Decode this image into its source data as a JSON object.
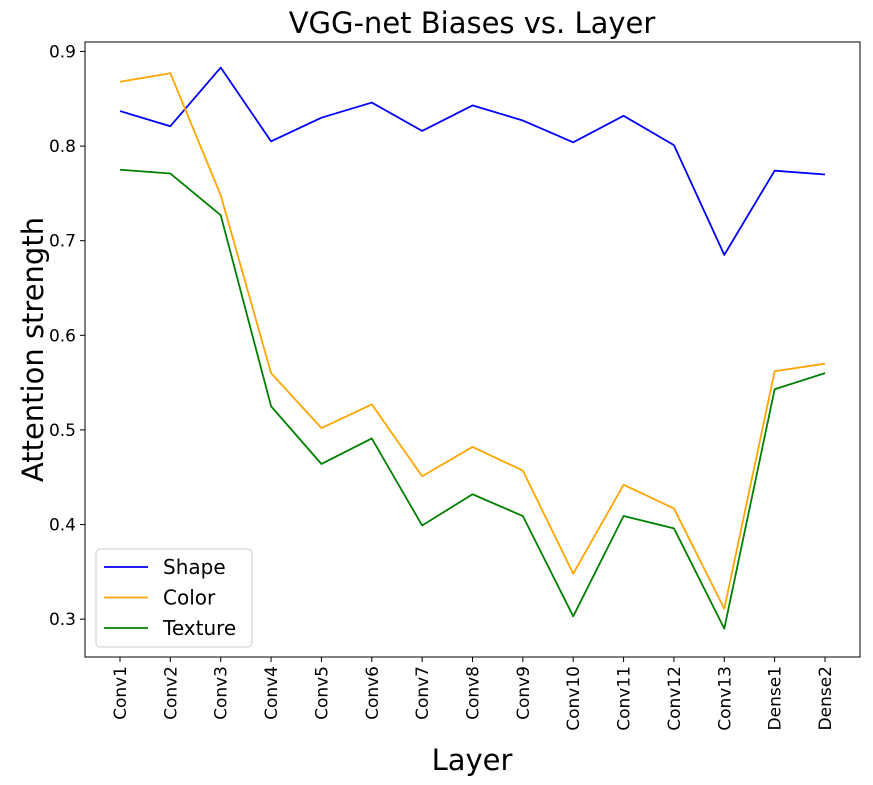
{
  "chart_data": {
    "type": "line",
    "title": "VGG-net Biases vs. Layer",
    "xlabel": "Layer",
    "ylabel": "Attention strength",
    "categories": [
      "Conv1",
      "Conv2",
      "Conv3",
      "Conv4",
      "Conv5",
      "Conv6",
      "Conv7",
      "Conv8",
      "Conv9",
      "Conv10",
      "Conv11",
      "Conv12",
      "Conv13",
      "Dense1",
      "Dense2"
    ],
    "ylim": [
      0.26,
      0.91
    ],
    "yticks": [
      "0.3",
      "0.4",
      "0.5",
      "0.6",
      "0.7",
      "0.8",
      "0.9"
    ],
    "grid": false,
    "legend_position": "lower-left",
    "series": [
      {
        "name": "Shape",
        "color": "#0000ff",
        "values": [
          0.837,
          0.821,
          0.883,
          0.805,
          0.83,
          0.846,
          0.816,
          0.843,
          0.827,
          0.804,
          0.832,
          0.801,
          0.685,
          0.774,
          0.77
        ]
      },
      {
        "name": "Color",
        "color": "#ffa500",
        "values": [
          0.868,
          0.877,
          0.748,
          0.56,
          0.502,
          0.527,
          0.451,
          0.482,
          0.457,
          0.348,
          0.442,
          0.417,
          0.311,
          0.562,
          0.57
        ]
      },
      {
        "name": "Texture",
        "color": "#008000",
        "values": [
          0.775,
          0.771,
          0.727,
          0.525,
          0.464,
          0.491,
          0.399,
          0.432,
          0.409,
          0.303,
          0.409,
          0.396,
          0.29,
          0.543,
          0.56
        ]
      }
    ]
  }
}
